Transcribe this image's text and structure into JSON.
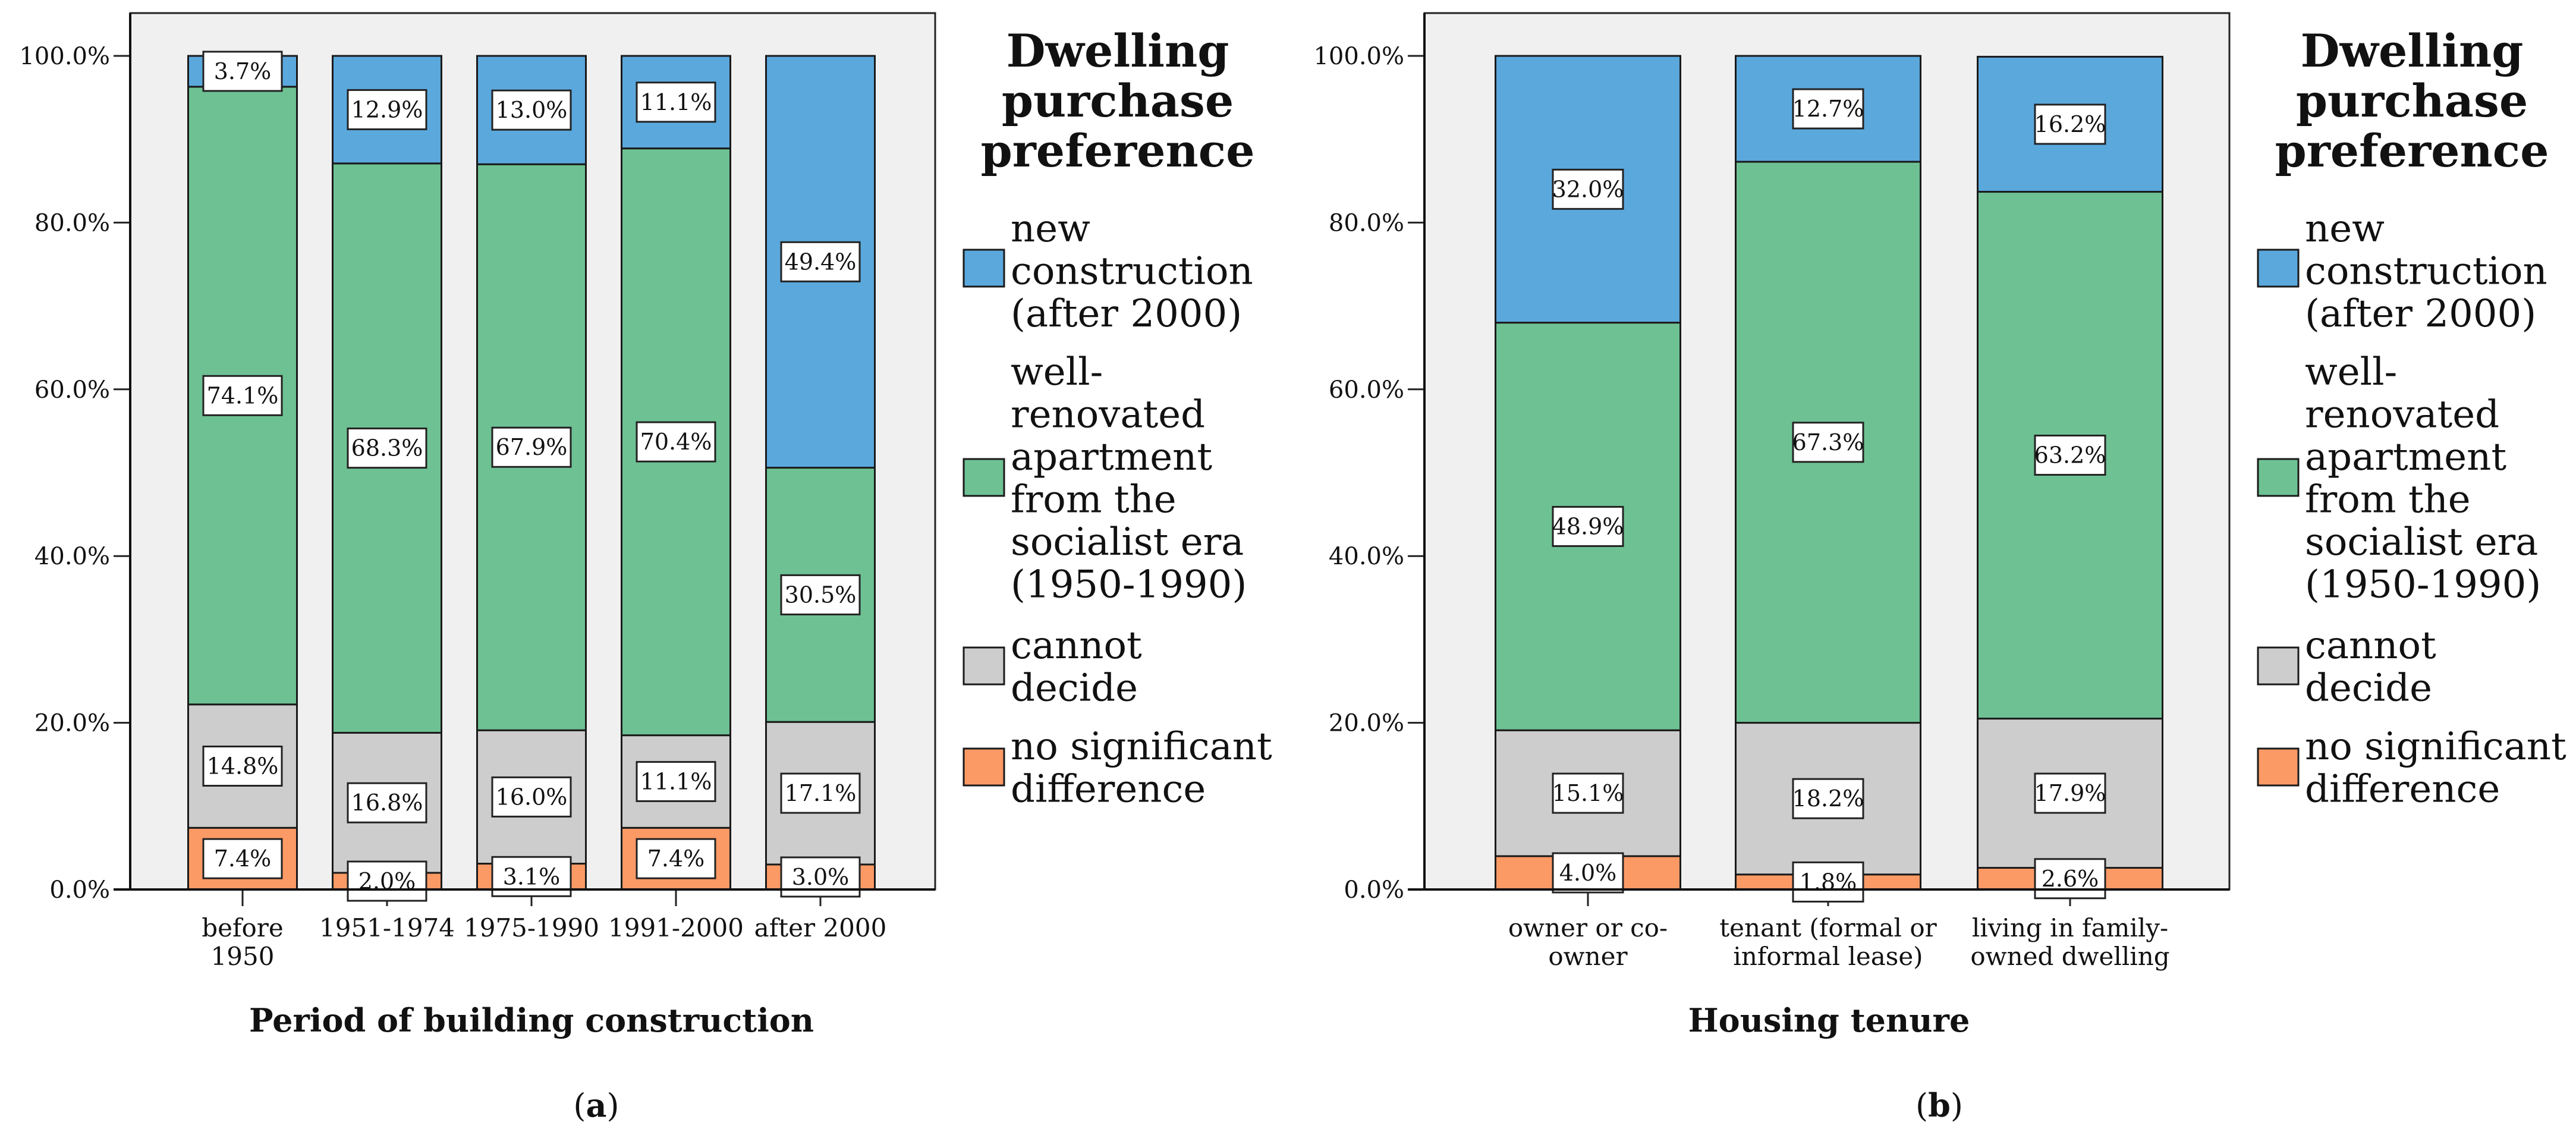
{
  "colors": {
    "new_construction": "#5BA8DD",
    "well_renovated": "#6EC193",
    "cannot_decide": "#CDCDCD",
    "no_difference": "#FC9A66",
    "plot_background": "#F0F0F0"
  },
  "chart_data": [
    {
      "type": "bar",
      "stacked": true,
      "panel_label": "a",
      "xlabel": "Period of building construction",
      "ylabel": "",
      "ylim": [
        0,
        100
      ],
      "yticks": [
        "0.0%",
        "20.0%",
        "40.0%",
        "60.0%",
        "80.0%",
        "100.0%"
      ],
      "grid": false,
      "legend_title": "Dwelling purchase preference",
      "legend_placement": "right",
      "categories": [
        "before\n1950",
        "1951-1974",
        "1975-1990",
        "1991-2000",
        "after 2000"
      ],
      "series": [
        {
          "name": "no significant\ndifference",
          "key": "no_difference",
          "values": [
            7.4,
            2.0,
            3.1,
            7.4,
            3.0
          ],
          "labels": [
            "7.4%",
            "2.0%",
            "3.1%",
            "7.4%",
            "3.0%"
          ]
        },
        {
          "name": "cannot\ndecide",
          "key": "cannot_decide",
          "values": [
            14.8,
            16.8,
            16.0,
            11.1,
            17.1
          ],
          "labels": [
            "14.8%",
            "16.8%",
            "16.0%",
            "11.1%",
            "17.1%"
          ]
        },
        {
          "name": "well-\nrenovated\napartment\nfrom the\nsocialist era\n(1950-1990)",
          "key": "well_renovated",
          "values": [
            74.1,
            68.3,
            67.9,
            70.4,
            30.5
          ],
          "labels": [
            "74.1%",
            "68.3%",
            "67.9%",
            "70.4%",
            "30.5%"
          ]
        },
        {
          "name": "new\nconstruction\n(after 2000)",
          "key": "new_construction",
          "values": [
            3.7,
            12.9,
            13.0,
            11.1,
            49.4
          ],
          "labels": [
            "3.7%",
            "12.9%",
            "13.0%",
            "11.1%",
            "49.4%"
          ]
        }
      ]
    },
    {
      "type": "bar",
      "stacked": true,
      "panel_label": "b",
      "xlabel": "Housing tenure",
      "ylabel": "",
      "ylim": [
        0,
        100
      ],
      "yticks": [
        "0.0%",
        "20.0%",
        "40.0%",
        "60.0%",
        "80.0%",
        "100.0%"
      ],
      "grid": false,
      "legend_title": "Dwelling purchase preference",
      "legend_placement": "right",
      "categories": [
        "owner or co-\nowner",
        "tenant (formal or\ninformal lease)",
        "living in family-\nowned dwelling"
      ],
      "series": [
        {
          "name": "no significant\ndifference",
          "key": "no_difference",
          "values": [
            4.0,
            1.8,
            2.6
          ],
          "labels": [
            "4.0%",
            "1.8%",
            "2.6%"
          ]
        },
        {
          "name": "cannot\ndecide",
          "key": "cannot_decide",
          "values": [
            15.1,
            18.2,
            17.9
          ],
          "labels": [
            "15.1%",
            "18.2%",
            "17.9%"
          ]
        },
        {
          "name": "well-\nrenovated\napartment\nfrom the\nsocialist era\n(1950-1990)",
          "key": "well_renovated",
          "values": [
            48.9,
            67.3,
            63.2
          ],
          "labels": [
            "48.9%",
            "67.3%",
            "63.2%"
          ]
        },
        {
          "name": "new\nconstruction\n(after 2000)",
          "key": "new_construction",
          "values": [
            32.0,
            12.7,
            16.2
          ],
          "labels": [
            "32.0%",
            "12.7%",
            "16.2%"
          ]
        }
      ]
    }
  ]
}
